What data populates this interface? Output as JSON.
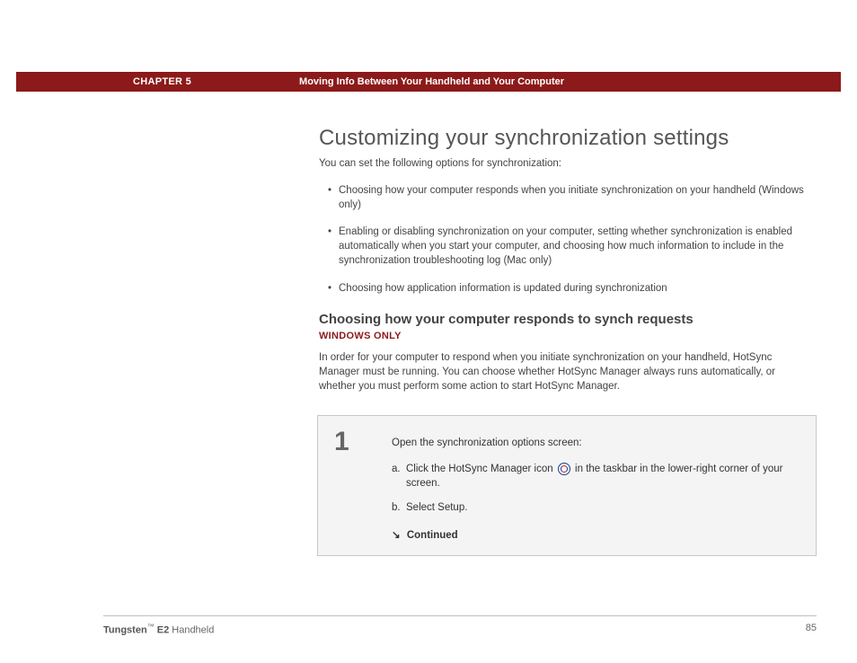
{
  "colors": {
    "header_bg": "#8c1a1a",
    "header_text": "#ffffff",
    "heading_text": "#555555",
    "body_text": "#444444",
    "platform_tag": "#8c1a1a",
    "box_border": "#c8c8c8",
    "box_bg": "#f4f4f4",
    "step_num": "#666666",
    "footer_rule": "#bebebe"
  },
  "header": {
    "chapter_label": "CHAPTER 5",
    "chapter_title": "Moving Info Between Your Handheld and Your Computer"
  },
  "main": {
    "h1": "Customizing your synchronization settings",
    "intro": "You can set the following options for synchronization:",
    "bullets": [
      "Choosing how your computer responds when you initiate synchronization on your handheld (Windows only)",
      "Enabling or disabling synchronization on your computer, setting whether synchronization is enabled automatically when you start your computer, and choosing how much information to include in the synchronization troubleshooting log (Mac only)",
      "Choosing how application information is updated during synchronization"
    ],
    "h2": "Choosing how your computer responds to synch requests",
    "platform_tag": "WINDOWS ONLY",
    "body": "In order for your computer to respond when you initiate synchronization on your handheld, HotSync Manager must be running. You can choose whether HotSync Manager always runs automatically, or whether you must perform some action to start HotSync Manager.",
    "step": {
      "number": "1",
      "title": "Open the synchronization options screen:",
      "subs": {
        "a_prefix": "Click the HotSync Manager icon",
        "a_suffix": "in the taskbar in the lower-right corner of your screen.",
        "b": "Select Setup.",
        "icon_name": "hotsync-icon"
      },
      "continued_label": "Continued",
      "continued_arrow": "↘"
    }
  },
  "footer": {
    "product_bold": "Tungsten",
    "tm": "™",
    "product_rest": " E2",
    "product_tail": " Handheld",
    "page_number": "85"
  }
}
